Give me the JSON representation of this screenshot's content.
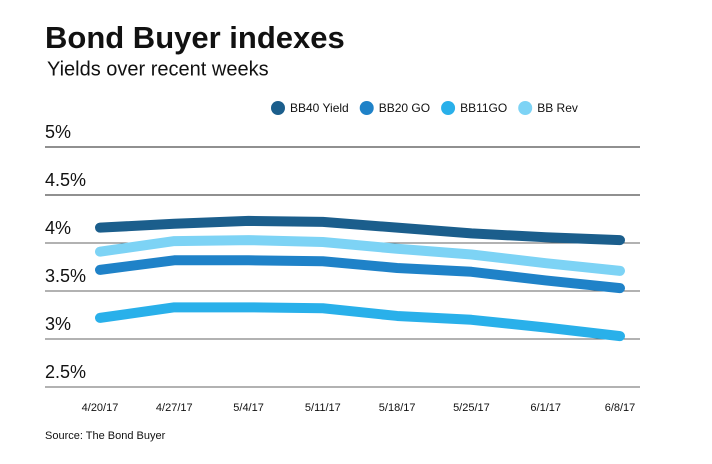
{
  "chart_data": {
    "type": "line",
    "title": "Bond Buyer indexes",
    "subtitle": "Yields over recent weeks",
    "source": "Source: The Bond Buyer",
    "categories": [
      "4/20/17",
      "4/27/17",
      "5/4/17",
      "5/11/17",
      "5/18/17",
      "5/25/17",
      "6/1/17",
      "6/8/17"
    ],
    "series": [
      {
        "name": "BB40 Yield",
        "color": "#1b5e8c",
        "values": [
          4.16,
          4.2,
          4.23,
          4.22,
          4.16,
          4.1,
          4.06,
          4.03
        ]
      },
      {
        "name": "BB20 GO",
        "color": "#1f82c8",
        "values": [
          3.72,
          3.82,
          3.82,
          3.81,
          3.74,
          3.7,
          3.61,
          3.53
        ]
      },
      {
        "name": "BB11GO",
        "color": "#29b0ea",
        "values": [
          3.22,
          3.33,
          3.33,
          3.32,
          3.24,
          3.2,
          3.12,
          3.03
        ]
      },
      {
        "name": "BB Rev",
        "color": "#7dd3f5",
        "values": [
          3.91,
          4.02,
          4.03,
          4.01,
          3.94,
          3.88,
          3.79,
          3.71
        ]
      }
    ],
    "ylim": [
      2.5,
      5
    ],
    "yticks": [
      {
        "value": 2.5,
        "label": "2.5%"
      },
      {
        "value": 3,
        "label": "3%"
      },
      {
        "value": 3.5,
        "label": "3.5%"
      },
      {
        "value": 4,
        "label": "4%"
      },
      {
        "value": 4.5,
        "label": "4.5%"
      },
      {
        "value": 5,
        "label": "5%"
      }
    ],
    "grid": true
  }
}
